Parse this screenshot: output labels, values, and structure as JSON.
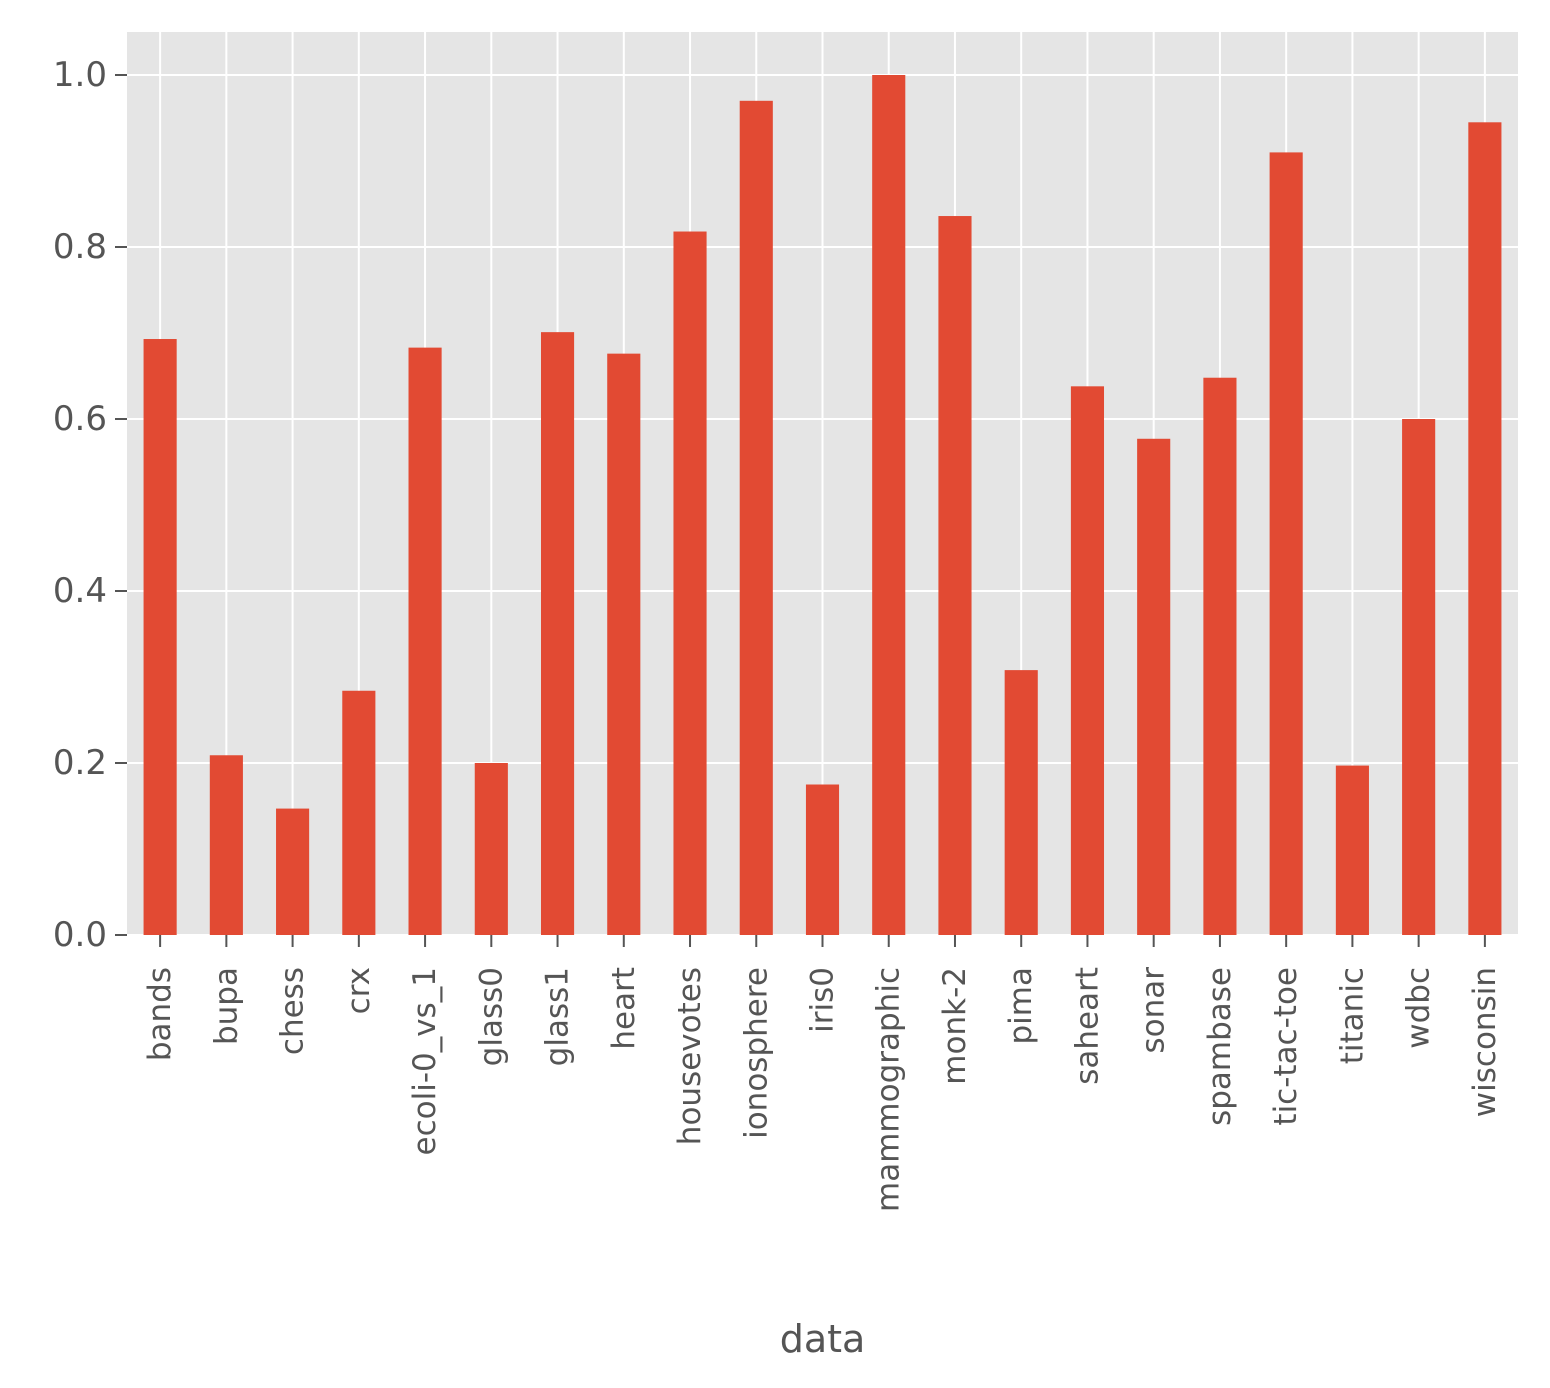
{
  "chart_data": {
    "type": "bar",
    "title": "",
    "xlabel": "data",
    "ylabel": "",
    "ylim": [
      0,
      1.05
    ],
    "yticks": [
      0.0,
      0.2,
      0.4,
      0.6,
      0.8,
      1.0
    ],
    "ytick_labels": [
      "0.0",
      "0.2",
      "0.4",
      "0.6",
      "0.8",
      "1.0"
    ],
    "grid": true,
    "bar_color": "#E24A33",
    "plot_background": "#E5E5E5",
    "grid_color": "#FFFFFF",
    "text_color": "#555555",
    "categories": [
      "bands",
      "bupa",
      "chess",
      "crx",
      "ecoli-0_vs_1",
      "glass0",
      "glass1",
      "heart",
      "housevotes",
      "ionosphere",
      "iris0",
      "mammographic",
      "monk-2",
      "pima",
      "saheart",
      "sonar",
      "spambase",
      "tic-tac-toe",
      "titanic",
      "wdbc",
      "wisconsin"
    ],
    "values": [
      0.693,
      0.209,
      0.147,
      0.284,
      0.683,
      0.2,
      0.701,
      0.676,
      0.818,
      0.97,
      0.175,
      1.0,
      0.836,
      0.308,
      0.638,
      0.577,
      0.648,
      0.91,
      0.197,
      0.6,
      0.945
    ]
  }
}
